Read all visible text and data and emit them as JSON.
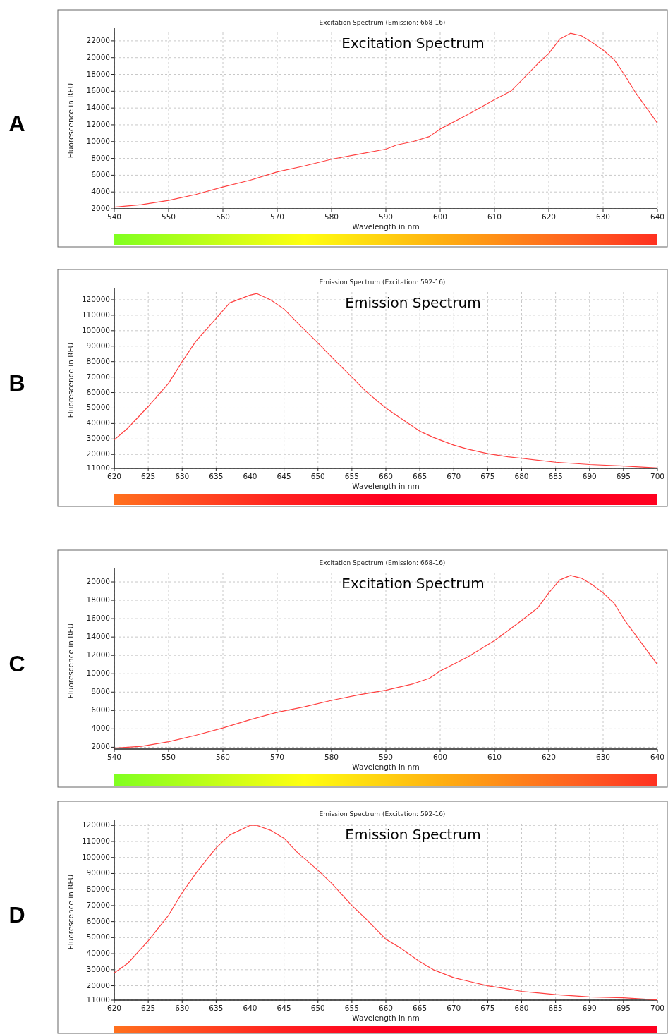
{
  "chart_data": [
    {
      "type": "line",
      "title": "Excitation Spectrum (Emission: 668-16)",
      "xlabel": "Wavelength in nm",
      "ylabel": "Fluorescence in RFU",
      "annotations": [
        "A",
        "Excitation Spectrum"
      ],
      "grid": true,
      "marker": "none",
      "line_style": "solid",
      "xlim": [
        540,
        640
      ],
      "xticks": [
        540,
        550,
        560,
        570,
        580,
        590,
        600,
        610,
        620,
        630,
        640
      ],
      "ylim": [
        2000,
        23000
      ],
      "yticks": [
        2000,
        4000,
        6000,
        8000,
        10000,
        12000,
        14000,
        16000,
        18000,
        20000,
        22000
      ],
      "series": [
        {
          "color": "#ff4040",
          "x": [
            540,
            545,
            550,
            555,
            560,
            565,
            570,
            575,
            580,
            585,
            590,
            592,
            595,
            598,
            600,
            605,
            610,
            613,
            615,
            618,
            620,
            622,
            624,
            626,
            628,
            630,
            632,
            634,
            636,
            638,
            640
          ],
          "values": [
            2200,
            2500,
            3000,
            3700,
            4600,
            5400,
            6400,
            7100,
            7900,
            8500,
            9100,
            9600,
            10000,
            10600,
            11500,
            13200,
            15000,
            16000,
            17300,
            19300,
            20500,
            22200,
            22900,
            22600,
            21800,
            20900,
            19800,
            17900,
            15800,
            14000,
            12200
          ]
        }
      ]
    },
    {
      "type": "line",
      "title": "Emission Spectrum (Excitation: 592-16)",
      "xlabel": "Wavelength in nm",
      "ylabel": "Fluorescence in RFU",
      "annotations": [
        "B",
        "Emission Spectrum"
      ],
      "grid": true,
      "marker": "none",
      "line_style": "solid",
      "xlim": [
        620,
        700
      ],
      "xticks": [
        620,
        625,
        630,
        635,
        640,
        645,
        650,
        655,
        660,
        665,
        670,
        675,
        680,
        685,
        690,
        695,
        700
      ],
      "ylim": [
        11000,
        125000
      ],
      "yticks": [
        11000,
        20000,
        30000,
        40000,
        50000,
        60000,
        70000,
        80000,
        90000,
        100000,
        110000,
        120000
      ],
      "series": [
        {
          "color": "#ff4040",
          "x": [
            620,
            622,
            625,
            628,
            630,
            632,
            635,
            637,
            640,
            641,
            643,
            645,
            647,
            650,
            652,
            655,
            657,
            660,
            662,
            665,
            667,
            670,
            672,
            675,
            678,
            680,
            685,
            690,
            695,
            700
          ],
          "values": [
            29500,
            37000,
            51000,
            66000,
            80000,
            93000,
            108000,
            118000,
            123000,
            124000,
            120000,
            114000,
            105000,
            92000,
            83000,
            70000,
            61000,
            50000,
            44000,
            35000,
            31000,
            26000,
            23500,
            20500,
            18500,
            17500,
            15000,
            13500,
            12500,
            11300
          ]
        }
      ]
    },
    {
      "type": "line",
      "title": "Excitation Spectrum (Emission: 668-16)",
      "xlabel": "Wavelength in nm",
      "ylabel": "Fluorescence in RFU",
      "annotations": [
        "C",
        "Excitation Spectrum"
      ],
      "grid": true,
      "marker": "none",
      "line_style": "solid",
      "xlim": [
        540,
        640
      ],
      "xticks": [
        540,
        550,
        560,
        570,
        580,
        590,
        600,
        610,
        620,
        630,
        640
      ],
      "ylim": [
        1800,
        21000
      ],
      "yticks": [
        2000,
        4000,
        6000,
        8000,
        10000,
        12000,
        14000,
        16000,
        18000,
        20000
      ],
      "series": [
        {
          "color": "#ff4040",
          "x": [
            540,
            545,
            550,
            555,
            560,
            565,
            570,
            575,
            580,
            585,
            590,
            595,
            598,
            600,
            605,
            610,
            615,
            618,
            620,
            622,
            624,
            626,
            628,
            630,
            632,
            634,
            636,
            638,
            640
          ],
          "values": [
            1900,
            2100,
            2600,
            3300,
            4100,
            5000,
            5800,
            6400,
            7100,
            7700,
            8200,
            8900,
            9500,
            10300,
            11800,
            13600,
            15800,
            17200,
            18800,
            20200,
            20700,
            20400,
            19700,
            18800,
            17700,
            15800,
            14200,
            12600,
            11000
          ]
        }
      ]
    },
    {
      "type": "line",
      "title": "Emission Spectrum (Excitation: 592-16)",
      "xlabel": "Wavelength in nm",
      "ylabel": "Fluorescence in RFU",
      "annotations": [
        "D",
        "Emission Spectrum"
      ],
      "grid": true,
      "marker": "none",
      "line_style": "solid",
      "xlim": [
        620,
        700
      ],
      "xticks": [
        620,
        625,
        630,
        635,
        640,
        645,
        650,
        655,
        660,
        665,
        670,
        675,
        680,
        685,
        690,
        695,
        700
      ],
      "ylim": [
        11000,
        121000
      ],
      "yticks": [
        11000,
        20000,
        30000,
        40000,
        50000,
        60000,
        70000,
        80000,
        90000,
        100000,
        110000,
        120000
      ],
      "series": [
        {
          "color": "#ff4040",
          "x": [
            620,
            622,
            625,
            628,
            630,
            632,
            635,
            637,
            640,
            641,
            643,
            645,
            647,
            650,
            652,
            655,
            657,
            660,
            662,
            665,
            667,
            670,
            672,
            675,
            678,
            680,
            685,
            690,
            695,
            700
          ],
          "values": [
            28000,
            34000,
            48000,
            64000,
            78000,
            90000,
            106000,
            114000,
            120000,
            120000,
            117000,
            112000,
            103000,
            92000,
            84000,
            70000,
            62000,
            49000,
            44000,
            35000,
            30000,
            25000,
            23000,
            20000,
            18000,
            16500,
            14500,
            13000,
            12500,
            11200
          ]
        }
      ]
    }
  ]
}
